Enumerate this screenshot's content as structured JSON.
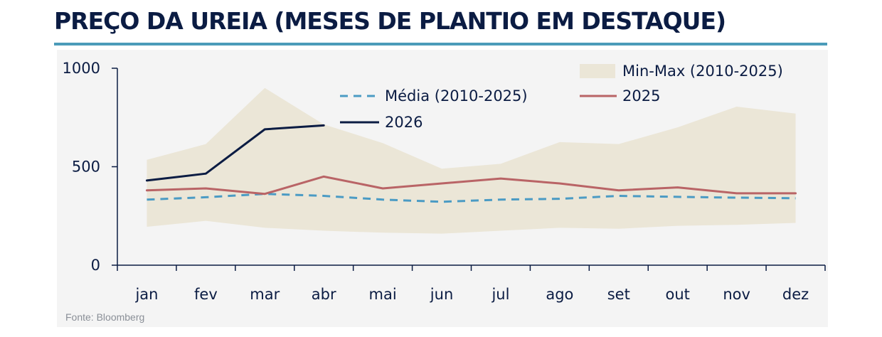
{
  "chart_data": {
    "type": "line",
    "title": "PREÇO DA UREIA (MESES DE PLANTIO EM DESTAQUE)",
    "source": "Fonte: Bloomberg",
    "categories": [
      "jan",
      "fev",
      "mar",
      "abr",
      "mai",
      "jun",
      "jul",
      "ago",
      "set",
      "out",
      "nov",
      "dez"
    ],
    "yticks": [
      0,
      500,
      1000
    ],
    "ylim": [
      0,
      1000
    ],
    "band": {
      "name": "Min-Max (2010-2025)",
      "color": "#ebe6d7",
      "min": [
        195,
        225,
        190,
        175,
        165,
        160,
        175,
        190,
        185,
        200,
        205,
        215
      ],
      "max": [
        535,
        615,
        900,
        715,
        620,
        490,
        515,
        625,
        615,
        700,
        805,
        770
      ]
    },
    "series": [
      {
        "name": "Média (2010-2025)",
        "color": "#4b9bc4",
        "style": "dashed",
        "values": [
          333,
          345,
          362,
          352,
          333,
          322,
          333,
          337,
          352,
          347,
          343,
          340
        ]
      },
      {
        "name": "2025",
        "color": "#b96466",
        "style": "solid",
        "values": [
          380,
          390,
          362,
          450,
          390,
          415,
          440,
          415,
          380,
          395,
          365,
          365
        ]
      },
      {
        "name": "2026",
        "color": "#0b1c43",
        "style": "solid",
        "values": [
          430,
          465,
          690,
          710,
          null,
          null,
          null,
          null,
          null,
          null,
          null,
          null
        ]
      }
    ],
    "legend_position": "top-right",
    "grid": false
  }
}
